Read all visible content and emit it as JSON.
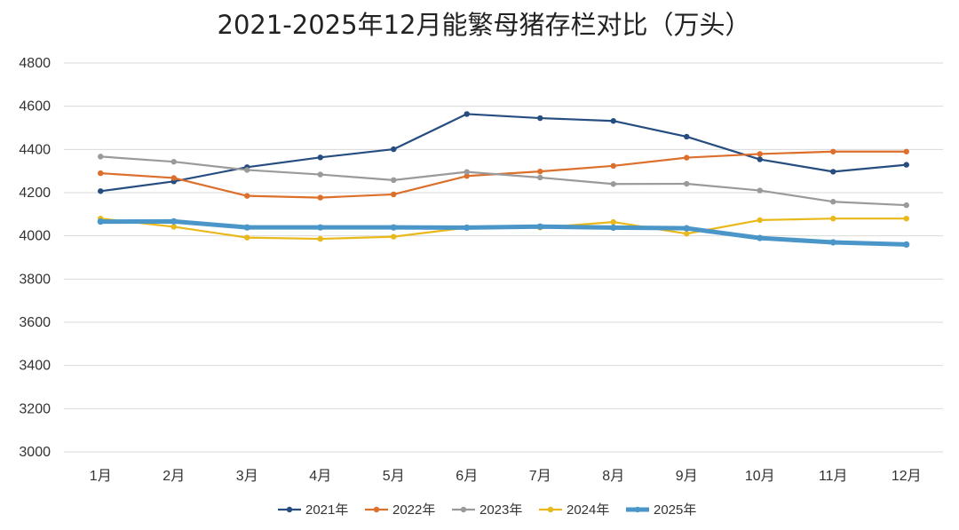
{
  "chart_data": {
    "type": "line",
    "title": "2021-2025年12月能繁母猪存栏对比（万头）",
    "xlabel": "",
    "ylabel": "",
    "categories": [
      "1月",
      "2月",
      "3月",
      "4月",
      "5月",
      "6月",
      "7月",
      "8月",
      "9月",
      "10月",
      "11月",
      "12月"
    ],
    "ylim": [
      3000,
      4800
    ],
    "yticks": [
      3000,
      3200,
      3400,
      3600,
      3800,
      4000,
      4200,
      4400,
      4600,
      4800
    ],
    "grid": true,
    "legend_position": "bottom",
    "series": [
      {
        "name": "2021年",
        "color": "#264d7f",
        "values": [
          4207,
          4252,
          4318,
          4363,
          4401,
          4564,
          4545,
          4532,
          4459,
          4354,
          4297,
          4329
        ]
      },
      {
        "name": "2022年",
        "color": "#dc6f2c",
        "values": [
          4290,
          4268,
          4185,
          4177,
          4192,
          4277,
          4298,
          4324,
          4362,
          4379,
          4390,
          4390
        ]
      },
      {
        "name": "2023年",
        "color": "#9a9a9a",
        "values": [
          4367,
          4343,
          4305,
          4284,
          4258,
          4296,
          4270,
          4240,
          4241,
          4210,
          4158,
          4142
        ]
      },
      {
        "name": "2024年",
        "color": "#e9b81a",
        "values": [
          4080,
          4042,
          3992,
          3986,
          3996,
          4038,
          4038,
          4064,
          4010,
          4073,
          4080,
          4080
        ]
      },
      {
        "name": "2025年",
        "color": "#4a96c8",
        "values": [
          4066,
          4067,
          4039,
          4039,
          4039,
          4038,
          4043,
          4038,
          4035,
          3990,
          3970,
          3960
        ]
      }
    ]
  }
}
